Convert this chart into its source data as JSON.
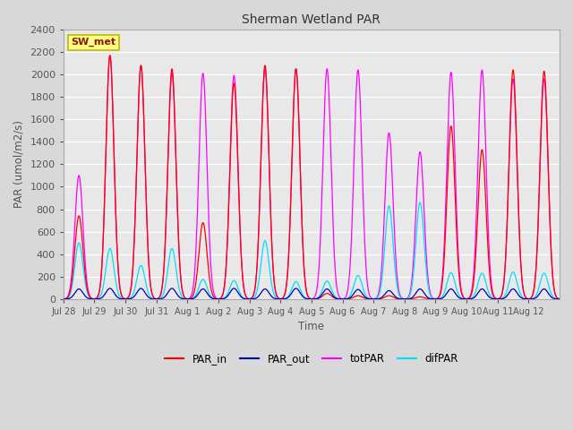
{
  "title": "Sherman Wetland PAR",
  "ylabel": "PAR (umol/m2/s)",
  "xlabel": "Time",
  "ylim": [
    0,
    2400
  ],
  "legend_label": "SW_met",
  "colors": {
    "PAR_in": "#ff0000",
    "PAR_out": "#0000bb",
    "totPAR": "#ff00ff",
    "difPAR": "#00ddff"
  },
  "bg_color": "#e8e8e8",
  "grid_color": "#ffffff",
  "xtick_labels": [
    "Jul 28",
    "Jul 29",
    "Jul 30",
    "Jul 31",
    "Aug 1",
    "Aug 2",
    "Aug 3",
    "Aug 4",
    "Aug 5",
    "Aug 6",
    "Aug 7",
    "Aug 8",
    "Aug 9",
    "Aug 10",
    "Aug 11",
    "Aug 12"
  ],
  "day_peaks": {
    "PAR_in": [
      740,
      2170,
      2080,
      2050,
      680,
      1920,
      2080,
      2050,
      50,
      30,
      30,
      20,
      1540,
      1330,
      2040,
      2030
    ],
    "PAR_out": [
      90,
      95,
      95,
      95,
      90,
      95,
      90,
      95,
      90,
      85,
      75,
      90,
      90,
      90,
      90,
      90
    ],
    "totPAR": [
      1100,
      2170,
      2080,
      2010,
      2010,
      1990,
      2050,
      2050,
      2050,
      2040,
      1480,
      1310,
      2020,
      2040,
      1960,
      1960
    ],
    "difPAR": [
      500,
      450,
      300,
      450,
      175,
      165,
      520,
      155,
      160,
      210,
      830,
      860,
      235,
      230,
      240,
      230
    ]
  },
  "figsize": [
    6.4,
    4.8
  ],
  "dpi": 100
}
